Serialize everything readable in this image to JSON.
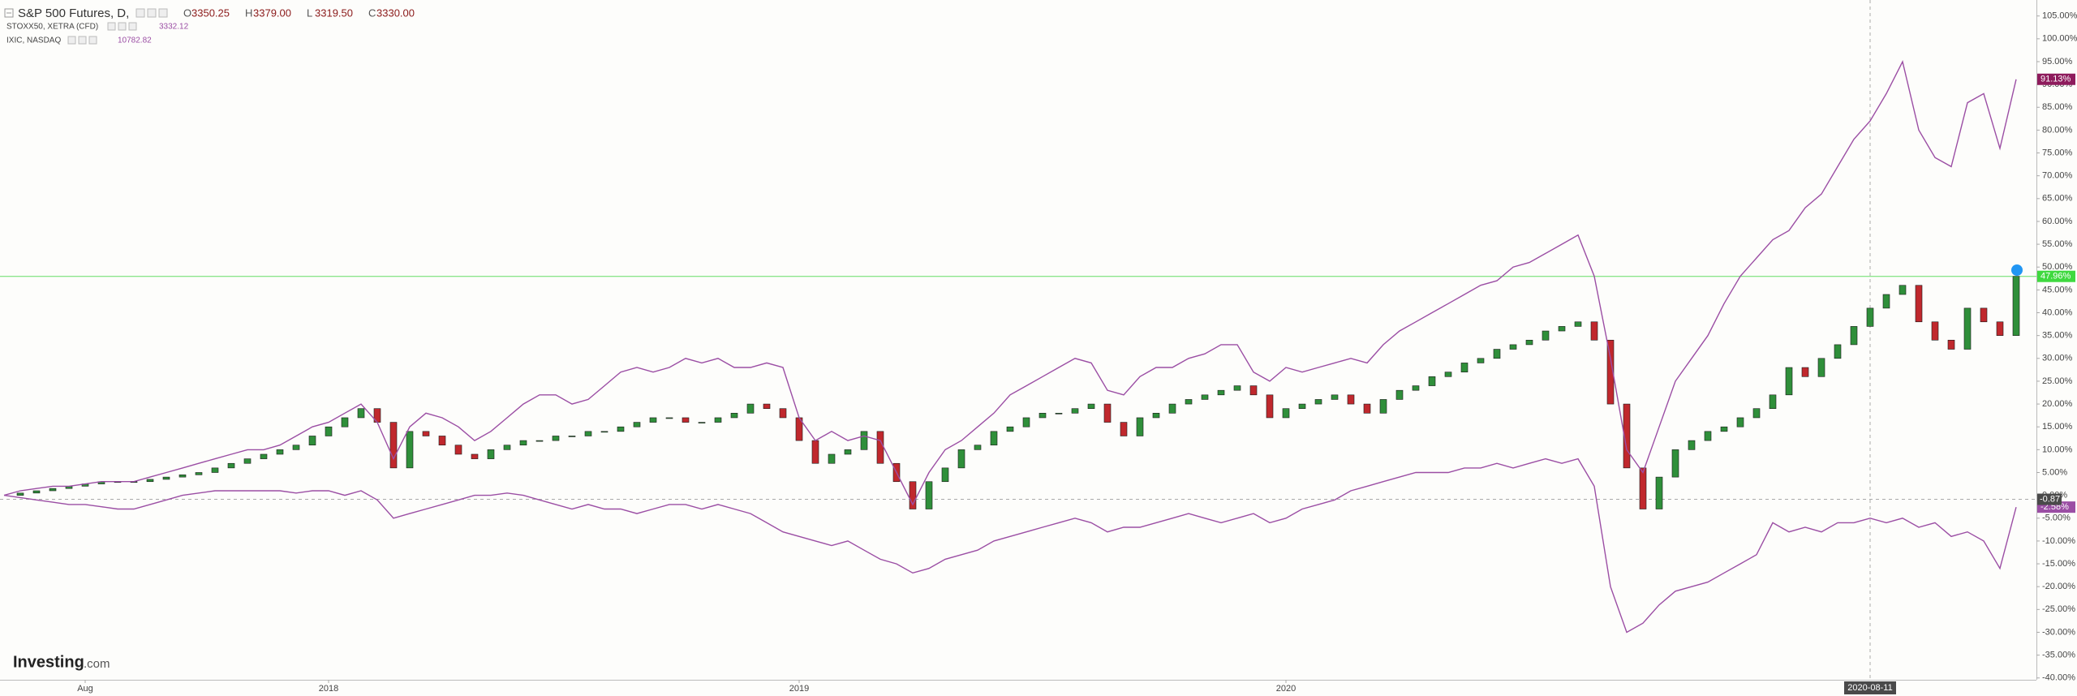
{
  "chart_data": {
    "type": "line",
    "header": {
      "ohlc": [
        {
          "label": "O",
          "value": 3350.25
        },
        {
          "label": "H",
          "value": 3379.0
        },
        {
          "label": "L",
          "value": 3319.5
        },
        {
          "label": "C",
          "value": 3330.0
        }
      ]
    },
    "watermark": [
      "Investing",
      ".com"
    ],
    "categories": [
      null,
      null,
      null,
      null,
      null,
      "Aug",
      null,
      null,
      null,
      null,
      null,
      null,
      null,
      null,
      null,
      null,
      null,
      null,
      null,
      null,
      "2018",
      null,
      null,
      null,
      null,
      null,
      null,
      null,
      null,
      null,
      null,
      null,
      null,
      null,
      null,
      null,
      null,
      null,
      null,
      null,
      null,
      null,
      null,
      null,
      null,
      null,
      null,
      null,
      null,
      "2019",
      null,
      null,
      null,
      null,
      null,
      null,
      null,
      null,
      null,
      null,
      null,
      null,
      null,
      null,
      null,
      null,
      null,
      null,
      null,
      null,
      null,
      null,
      null,
      null,
      null,
      null,
      null,
      null,
      null,
      "2020",
      null,
      null,
      null,
      null,
      null,
      null,
      null,
      null,
      null,
      null,
      null,
      null,
      null,
      null,
      null,
      null,
      null,
      null,
      null,
      null,
      null,
      null,
      null,
      null,
      null,
      null,
      null,
      null,
      null,
      null,
      null,
      null,
      null,
      null,
      null,
      "2020-08-11",
      null,
      null,
      null,
      null,
      null,
      null,
      null,
      null,
      null
    ],
    "series": [
      {
        "name": "S&P 500 Futures, D,",
        "mark": "candle",
        "up_color": "#2f8f3a",
        "down_color": "#c0282d",
        "last_label": "47.96%",
        "label_color": "#3fd93f",
        "last_value_text": null,
        "values": [
          0,
          0.5,
          1,
          1.5,
          2,
          2.5,
          3,
          3,
          3,
          3.5,
          4,
          4.5,
          5,
          6,
          7,
          8,
          9,
          10,
          11,
          13,
          15,
          17,
          19,
          16,
          6,
          14,
          13,
          11,
          9,
          8,
          10,
          11,
          12,
          12,
          13,
          13,
          14,
          14,
          15,
          16,
          17,
          17,
          16,
          16,
          17,
          18,
          20,
          19,
          17,
          12,
          7,
          9,
          10,
          14,
          7,
          3,
          -3,
          3,
          6,
          10,
          11,
          14,
          15,
          17,
          18,
          18,
          19,
          20,
          16,
          13,
          17,
          18,
          20,
          21,
          22,
          23,
          24,
          22,
          17,
          19,
          20,
          21,
          22,
          20,
          18,
          21,
          23,
          24,
          26,
          27,
          29,
          30,
          32,
          33,
          34,
          36,
          37,
          38,
          34,
          20,
          6,
          -3,
          4,
          10,
          12,
          14,
          15,
          17,
          19,
          22,
          28,
          26,
          30,
          33,
          37,
          41,
          44,
          46,
          38,
          34,
          32,
          41,
          38,
          35,
          47.96
        ]
      },
      {
        "name": "STOXX50, XETRA (CFD)",
        "color": "#9b4ea4",
        "last_label": "-2.58%",
        "label_color": "#9b4ea4",
        "last_value_text": 3332.12,
        "values": [
          0,
          -0.5,
          -1,
          -1.5,
          -2,
          -2,
          -2.5,
          -3,
          -3,
          -2,
          -1,
          0,
          0.5,
          1,
          1,
          1,
          1,
          1,
          0.5,
          1,
          1,
          0,
          1,
          -1,
          -5,
          -4,
          -3,
          -2,
          -1,
          0,
          0,
          0.5,
          0,
          -1,
          -2,
          -3,
          -2,
          -3,
          -3,
          -4,
          -3,
          -2,
          -2,
          -3,
          -2,
          -3,
          -4,
          -6,
          -8,
          -9,
          -10,
          -11,
          -10,
          -12,
          -14,
          -15,
          -17,
          -16,
          -14,
          -13,
          -12,
          -10,
          -9,
          -8,
          -7,
          -6,
          -5,
          -6,
          -8,
          -7,
          -7,
          -6,
          -5,
          -4,
          -5,
          -6,
          -5,
          -4,
          -6,
          -5,
          -3,
          -2,
          -1,
          1,
          2,
          3,
          4,
          5,
          5,
          5,
          6,
          6,
          7,
          6,
          7,
          8,
          7,
          8,
          2,
          -20,
          -30,
          -28,
          -24,
          -21,
          -20,
          -19,
          -17,
          -15,
          -13,
          -6,
          -8,
          -7,
          -8,
          -6,
          -6,
          -5,
          -6,
          -5,
          -7,
          -6,
          -9,
          -8,
          -10,
          -16,
          -2.58
        ]
      },
      {
        "name": "IXIC, NASDAQ",
        "color": "#9b4ea4",
        "last_label": "91.13%",
        "label_color": "#8e1b5c",
        "last_value_text": 10782.82,
        "values": [
          0,
          1,
          1.5,
          2,
          2,
          2.5,
          3,
          3,
          3,
          4,
          5,
          6,
          7,
          8,
          9,
          10,
          10,
          11,
          13,
          15,
          16,
          18,
          20,
          16,
          8,
          15,
          18,
          17,
          15,
          12,
          14,
          17,
          20,
          22,
          22,
          20,
          21,
          24,
          27,
          28,
          27,
          28,
          30,
          29,
          30,
          28,
          28,
          29,
          28,
          17,
          12,
          14,
          12,
          13,
          12,
          5,
          -2,
          5,
          10,
          12,
          15,
          18,
          22,
          24,
          26,
          28,
          30,
          29,
          23,
          22,
          26,
          28,
          28,
          30,
          31,
          33,
          33,
          27,
          25,
          28,
          27,
          28,
          29,
          30,
          29,
          33,
          36,
          38,
          40,
          42,
          44,
          46,
          47,
          50,
          51,
          53,
          55,
          57,
          48,
          30,
          10,
          5,
          15,
          25,
          30,
          35,
          42,
          48,
          52,
          56,
          58,
          63,
          66,
          72,
          78,
          82,
          88,
          95,
          80,
          74,
          72,
          86,
          88,
          76,
          91.13
        ]
      }
    ],
    "ylim": [
      -40.4,
      108.5
    ],
    "yticks": [
      {
        "value": -40,
        "label": "-40.00%"
      },
      {
        "value": -35,
        "label": "-35.00%"
      },
      {
        "value": -30,
        "label": "-30.00%"
      },
      {
        "value": -25,
        "label": "-25.00%"
      },
      {
        "value": -20,
        "label": "-20.00%"
      },
      {
        "value": -15,
        "label": "-15.00%"
      },
      {
        "value": -10,
        "label": "-10.00%"
      },
      {
        "value": -5,
        "label": "-5.00%"
      },
      {
        "value": 0,
        "label": "0.00%"
      },
      {
        "value": 5,
        "label": "5.00%"
      },
      {
        "value": 10,
        "label": "10.00%"
      },
      {
        "value": 15,
        "label": "15.00%"
      },
      {
        "value": 20,
        "label": "20.00%"
      },
      {
        "value": 25,
        "label": "25.00%"
      },
      {
        "value": 30,
        "label": "30.00%"
      },
      {
        "value": 35,
        "label": "35.00%"
      },
      {
        "value": 40,
        "label": "40.00%"
      },
      {
        "value": 45,
        "label": "45.00%"
      },
      {
        "value": 50,
        "label": "50.00%"
      },
      {
        "value": 55,
        "label": "55.00%"
      },
      {
        "value": 60,
        "label": "60.00%"
      },
      {
        "value": 65,
        "label": "65.00%"
      },
      {
        "value": 70,
        "label": "70.00%"
      },
      {
        "value": 75,
        "label": "75.00%"
      },
      {
        "value": 80,
        "label": "80.00%"
      },
      {
        "value": 85,
        "label": "85.00%"
      },
      {
        "value": 90,
        "label": "90.00%"
      },
      {
        "value": 95,
        "label": "95.00%"
      },
      {
        "value": 100,
        "label": "100.00%"
      },
      {
        "value": 105,
        "label": "105.00%"
      }
    ],
    "crosshair": {
      "category": 115,
      "y": -0.87
    },
    "price_line_color": "#66dd66",
    "grid": false
  }
}
